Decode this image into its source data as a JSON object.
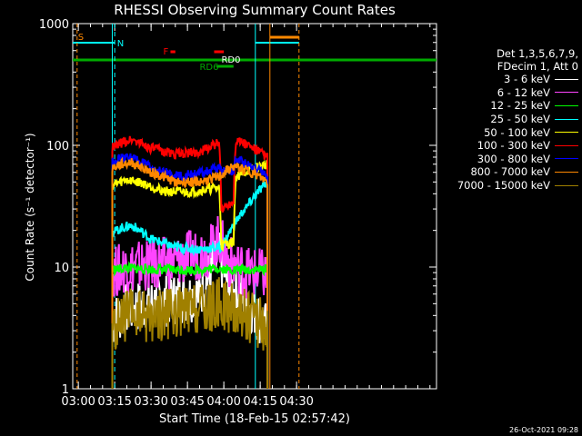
{
  "chart_data": {
    "type": "line",
    "title": "RHESSI Observing Summary Count Rates",
    "xlabel": "Start Time (18-Feb-15 02:57:42)",
    "ylabel": "Count Rate (s⁻¹ detector⁻¹)",
    "ylim": [
      1,
      1000
    ],
    "yscale": "log",
    "xlim": [
      "02:57:42",
      "05:28:00"
    ],
    "x_ticks": [
      "03:00",
      "03:15",
      "03:30",
      "03:45",
      "04:00",
      "04:15",
      "04:30"
    ],
    "y_ticks": [
      "1",
      "10",
      "100",
      "1000"
    ],
    "legend_header": [
      "Det 1,3,5,6,7,9,",
      "FDecim 1, Att 0"
    ],
    "series": [
      {
        "name": "3 - 6 keV",
        "color": "#ffffff",
        "x": [
          "03:14",
          "03:20",
          "03:30",
          "03:40",
          "03:50",
          "03:55",
          "03:58",
          "04:02",
          "04:10",
          "04:18"
        ],
        "y": [
          3.5,
          4.5,
          5,
          5.5,
          6,
          9,
          12,
          7,
          5,
          3
        ]
      },
      {
        "name": "6 - 12 keV",
        "color": "#ff44ff",
        "x": [
          "03:14",
          "03:20",
          "03:30",
          "03:40",
          "03:50",
          "03:55",
          "03:58",
          "04:02",
          "04:10",
          "04:18"
        ],
        "y": [
          9,
          10,
          10.5,
          11,
          13,
          14,
          17,
          11,
          9,
          8.5
        ]
      },
      {
        "name": "12 - 25 keV",
        "color": "#00ff00",
        "x": [
          "03:14",
          "03:20",
          "03:30",
          "03:40",
          "03:50",
          "03:58",
          "04:02",
          "04:10",
          "04:18"
        ],
        "y": [
          9.5,
          9.8,
          9.6,
          9.5,
          9.5,
          9.8,
          9.5,
          9.5,
          9.6
        ]
      },
      {
        "name": "25 - 50 keV",
        "color": "#00ffff",
        "x": [
          "03:14",
          "03:18",
          "03:22",
          "03:30",
          "03:40",
          "03:50",
          "03:58",
          "03:59",
          "04:04",
          "04:10",
          "04:18"
        ],
        "y": [
          19,
          21,
          22,
          17,
          14.5,
          14,
          14.5,
          14,
          22,
          32,
          50
        ]
      },
      {
        "name": "50 - 100 keV",
        "color": "#ffff00",
        "x": [
          "03:14",
          "03:20",
          "03:25",
          "03:35",
          "03:45",
          "03:55",
          "03:58",
          "03:59",
          "04:04",
          "04:05",
          "04:10",
          "04:18"
        ],
        "y": [
          47,
          52,
          50,
          42,
          41,
          44,
          45,
          15,
          16,
          55,
          62,
          70
        ]
      },
      {
        "name": "100 - 300 keV",
        "color": "#ff0000",
        "x": [
          "03:14",
          "03:18",
          "03:22",
          "03:30",
          "03:40",
          "03:50",
          "03:58",
          "03:59",
          "04:04",
          "04:05",
          "04:10",
          "04:18"
        ],
        "y": [
          95,
          105,
          112,
          95,
          85,
          88,
          105,
          30,
          35,
          112,
          100,
          80
        ]
      },
      {
        "name": "300 - 800 keV",
        "color": "#0000ff",
        "x": [
          "03:14",
          "03:18",
          "03:22",
          "03:30",
          "03:40",
          "03:50",
          "03:58",
          "03:59",
          "04:04",
          "04:05",
          "04:10",
          "04:18"
        ],
        "y": [
          75,
          78,
          80,
          65,
          56,
          58,
          65,
          62,
          62,
          78,
          70,
          55
        ]
      },
      {
        "name": "800 - 7000 keV",
        "color": "#ff8800",
        "x": [
          "03:14",
          "03:18",
          "03:22",
          "03:30",
          "03:40",
          "03:50",
          "03:58",
          "04:04",
          "04:10",
          "04:18"
        ],
        "y": [
          65,
          70,
          72,
          60,
          50,
          50,
          55,
          67,
          62,
          50
        ]
      },
      {
        "name": "7000 - 15000 keV",
        "color": "#a08000",
        "x": [
          "03:14",
          "03:20",
          "03:30",
          "03:40",
          "03:50",
          "03:55",
          "03:58",
          "04:04",
          "04:10",
          "04:18"
        ],
        "y": [
          3,
          4,
          4,
          4.2,
          4.4,
          4.6,
          5,
          4.5,
          4,
          3.2
        ]
      }
    ],
    "flags": [
      {
        "label": "S",
        "color": "#ff8800"
      },
      {
        "label": "N",
        "color": "#00ffff"
      },
      {
        "label": "F",
        "color": "#ff0000"
      },
      {
        "label": "RD0",
        "color": "#ffffff"
      },
      {
        "label": "RD6",
        "color": "#00aa00"
      }
    ],
    "timestamp": "26-Oct-2021 09:28"
  }
}
